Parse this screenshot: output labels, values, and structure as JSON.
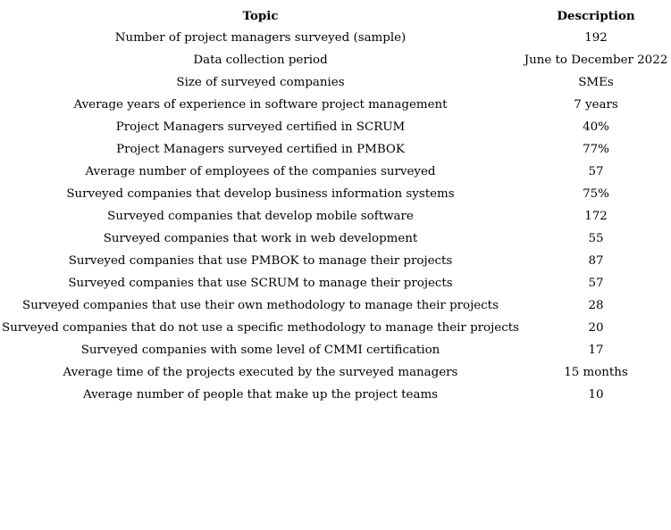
{
  "table": {
    "headers": {
      "topic": "Topic",
      "description": "Description"
    },
    "rows": [
      {
        "topic": "Number of project managers surveyed (sample)",
        "description": "192"
      },
      {
        "topic": "Data collection period",
        "description": "June to December 2022"
      },
      {
        "topic": "Size of surveyed companies",
        "description": "SMEs"
      },
      {
        "topic": "Average years of experience in software project management",
        "description": "7 years"
      },
      {
        "topic": "Project Managers surveyed certified in SCRUM",
        "description": "40%"
      },
      {
        "topic": "Project Managers surveyed certified in PMBOK",
        "description": "77%"
      },
      {
        "topic": "Average number of employees of the companies surveyed",
        "description": "57"
      },
      {
        "topic": "Surveyed companies that develop business information systems",
        "description": "75%"
      },
      {
        "topic": "Surveyed companies that develop mobile software",
        "description": "172"
      },
      {
        "topic": "Surveyed companies that work in web development",
        "description": "55"
      },
      {
        "topic": "Surveyed companies that use PMBOK to manage their projects",
        "description": "87"
      },
      {
        "topic": "Surveyed companies that use SCRUM to manage their projects",
        "description": "57"
      },
      {
        "topic": "Surveyed companies that use their own methodology to manage their projects",
        "description": "28"
      },
      {
        "topic": "Surveyed companies that do not use a specific methodology to manage their projects",
        "description": "20"
      },
      {
        "topic": "Surveyed companies with some level of CMMI certification",
        "description": "17"
      },
      {
        "topic": "Average time of the projects executed by the surveyed managers",
        "description": "15 months"
      },
      {
        "topic": "Average number of people that make up the project teams",
        "description": "10"
      }
    ]
  }
}
